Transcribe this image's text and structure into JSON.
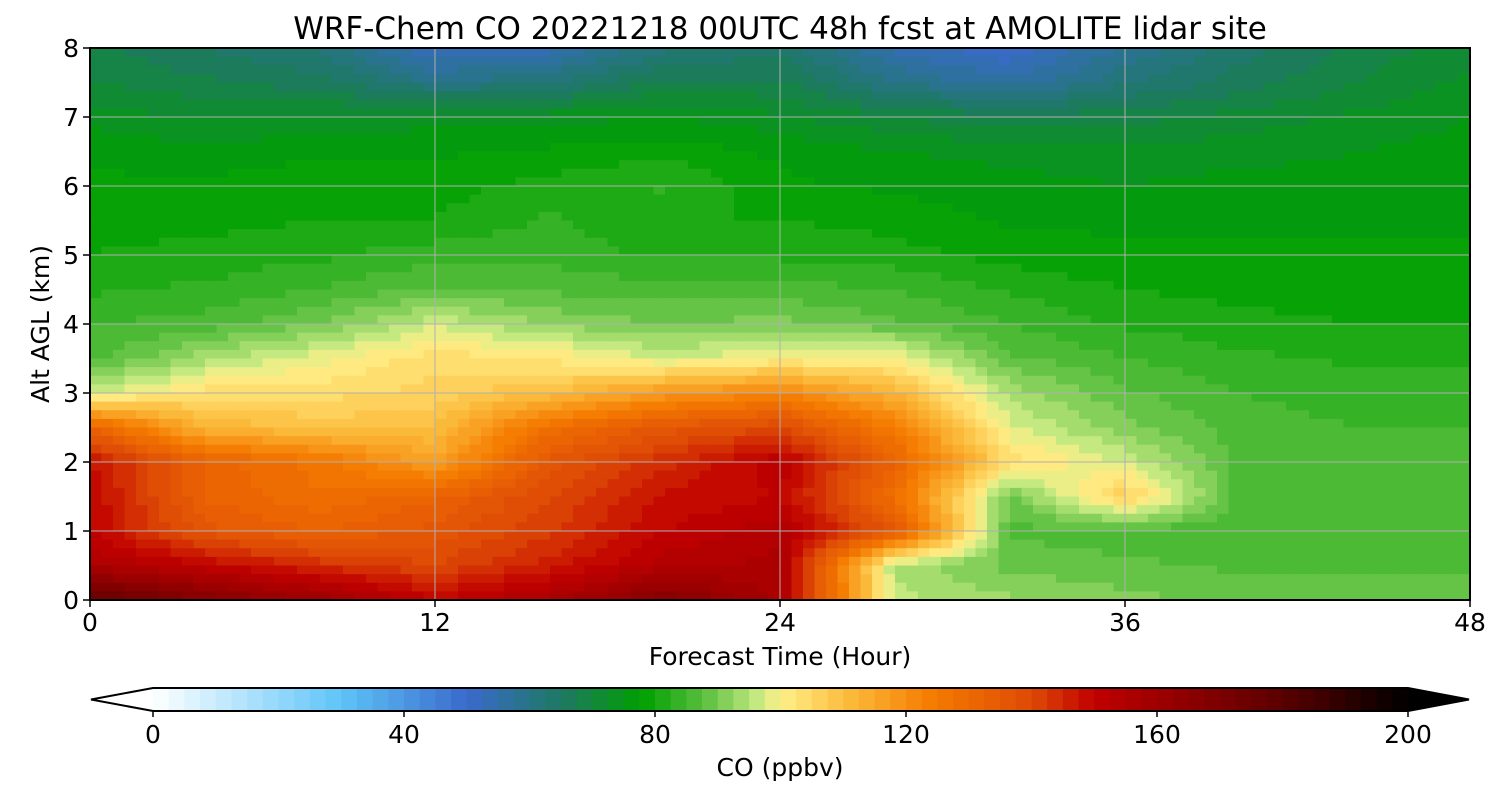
{
  "chart_data": {
    "type": "heatmap",
    "title": "WRF-Chem CO  20221218 00UTC 48h fcst at AMOLITE lidar site",
    "xlabel": "Forecast Time (Hour)",
    "ylabel": "Alt AGL (km)",
    "xlim": [
      0,
      48
    ],
    "ylim": [
      0,
      8
    ],
    "x_ticks": [
      0,
      12,
      24,
      36,
      48
    ],
    "y_ticks": [
      0,
      1,
      2,
      3,
      4,
      5,
      6,
      7,
      8
    ],
    "grid": true,
    "x": [
      0,
      4,
      8,
      12,
      16,
      20,
      24,
      28,
      32,
      36,
      40,
      44,
      48
    ],
    "y": [
      0,
      0.5,
      1,
      1.5,
      2,
      2.5,
      3,
      3.5,
      4,
      4.5,
      5,
      5.5,
      6,
      6.5,
      7,
      7.5,
      8
    ],
    "z": [
      [
        178,
        168,
        160,
        150,
        156,
        168,
        156,
        96,
        93,
        91,
        89,
        89,
        89
      ],
      [
        156,
        150,
        144,
        140,
        146,
        154,
        156,
        94,
        89,
        88,
        87,
        87,
        87
      ],
      [
        150,
        136,
        132,
        136,
        142,
        150,
        154,
        136,
        87,
        86,
        86,
        86,
        86
      ],
      [
        150,
        132,
        128,
        132,
        140,
        148,
        150,
        128,
        89,
        107,
        86,
        85,
        85
      ],
      [
        148,
        132,
        126,
        116,
        136,
        144,
        152,
        132,
        104,
        97,
        87,
        85,
        85
      ],
      [
        132,
        112,
        109,
        110,
        128,
        136,
        140,
        124,
        98,
        91,
        86,
        85,
        85
      ],
      [
        96,
        104,
        104,
        106,
        110,
        118,
        122,
        112,
        94,
        88,
        85,
        84,
        84
      ],
      [
        86,
        94,
        99,
        104,
        102,
        97,
        100,
        100,
        88,
        85,
        83,
        82,
        82
      ],
      [
        85,
        86,
        90,
        97,
        92,
        90,
        91,
        88,
        85,
        82,
        81,
        80,
        80
      ],
      [
        82,
        83,
        85,
        88,
        87,
        86,
        86,
        85,
        82,
        80,
        79,
        78,
        78
      ],
      [
        80,
        81,
        82,
        84,
        84,
        82,
        82,
        81,
        79,
        78,
        78,
        78,
        78
      ],
      [
        79,
        79,
        80,
        80,
        83,
        80,
        80,
        79,
        77,
        77,
        77,
        77,
        77
      ],
      [
        78,
        78,
        79,
        79,
        81,
        83,
        78,
        77,
        76,
        75,
        76,
        76,
        76
      ],
      [
        77,
        76,
        77,
        77,
        78,
        79,
        77,
        75,
        74,
        73,
        74,
        75,
        76
      ],
      [
        74,
        72,
        73,
        74,
        74,
        75,
        73,
        70,
        68,
        69,
        71,
        73,
        75
      ],
      [
        70,
        68,
        66,
        60,
        62,
        68,
        68,
        60,
        56,
        62,
        66,
        70,
        73
      ],
      [
        68,
        65,
        62,
        52,
        54,
        62,
        64,
        54,
        50,
        58,
        64,
        68,
        72
      ]
    ],
    "colorbar": {
      "label": "CO  (ppbv)",
      "min": 0,
      "max": 200,
      "ticks": [
        0,
        40,
        80,
        120,
        160,
        200
      ],
      "extend": "both",
      "levels": 80,
      "color_stops": [
        [
          0,
          "#ffffff"
        ],
        [
          30,
          "#5ec4f8"
        ],
        [
          50,
          "#3a6acc"
        ],
        [
          66,
          "#1c7a5c"
        ],
        [
          78,
          "#00a000"
        ],
        [
          88,
          "#5cc040"
        ],
        [
          96,
          "#c0e880"
        ],
        [
          100,
          "#fff08a"
        ],
        [
          110,
          "#fcbf40"
        ],
        [
          124,
          "#f57c00"
        ],
        [
          140,
          "#de4a06"
        ],
        [
          150,
          "#c00000"
        ],
        [
          180,
          "#5a0000"
        ],
        [
          200,
          "#000000"
        ]
      ]
    }
  }
}
